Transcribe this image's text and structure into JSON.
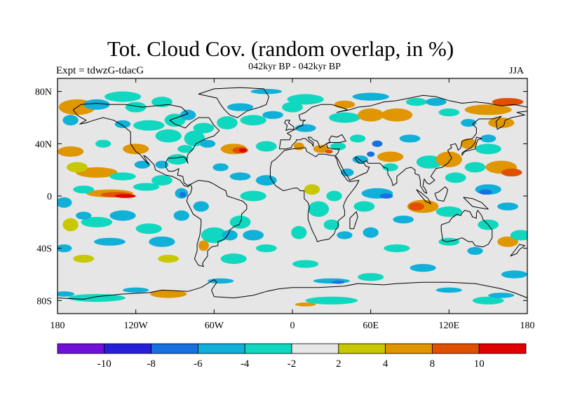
{
  "title": "Tot. Cloud Cov. (random overlap, in %)",
  "subtitle": "042kyr BP - 042kyr BP",
  "left_label": "Expt = tdwzG-tdacG",
  "right_label": "JJA",
  "map": {
    "lon_range": [
      -180,
      180
    ],
    "lat_range": [
      -90,
      90
    ],
    "lon_ticks": [
      {
        "value": -180,
        "label": "180"
      },
      {
        "value": -120,
        "label": "120W"
      },
      {
        "value": -60,
        "label": "60W"
      },
      {
        "value": 0,
        "label": "0"
      },
      {
        "value": 60,
        "label": "60E"
      },
      {
        "value": 120,
        "label": "120E"
      },
      {
        "value": 180,
        "label": "180"
      }
    ],
    "lat_ticks": [
      {
        "value": 80,
        "label": "80N"
      },
      {
        "value": 40,
        "label": "40N"
      },
      {
        "value": 0,
        "label": "0"
      },
      {
        "value": -40,
        "label": "40S"
      },
      {
        "value": -80,
        "label": "80S"
      }
    ],
    "background_color": "#e6e6e6"
  },
  "colorbar": {
    "colors": [
      "#7010d8",
      "#2820d8",
      "#1870e0",
      "#10b0d8",
      "#10d8c0",
      "#e6e6e6",
      "#c8c800",
      "#e09600",
      "#e05000",
      "#e00000"
    ],
    "labels": [
      "-10",
      "-8",
      "-6",
      "-4",
      "-2",
      "2",
      "4",
      "8",
      "10"
    ]
  },
  "blobs": [
    {
      "lon": -165,
      "lat": 68,
      "rx": 14,
      "ry": 6,
      "cls": 7
    },
    {
      "lon": -150,
      "lat": 70,
      "rx": 10,
      "ry": 4,
      "cls": 3
    },
    {
      "lon": -130,
      "lat": 76,
      "rx": 14,
      "ry": 4,
      "cls": 4
    },
    {
      "lon": -170,
      "lat": 34,
      "rx": 10,
      "ry": 4,
      "cls": 7
    },
    {
      "lon": -150,
      "lat": 18,
      "rx": 16,
      "ry": 4,
      "cls": 7
    },
    {
      "lon": -120,
      "lat": 36,
      "rx": 10,
      "ry": 4,
      "cls": 7
    },
    {
      "lon": -165,
      "lat": 22,
      "rx": 8,
      "ry": 4,
      "cls": 6
    },
    {
      "lon": -140,
      "lat": 2,
      "rx": 18,
      "ry": 3,
      "cls": 7
    },
    {
      "lon": -135,
      "lat": 1,
      "rx": 12,
      "ry": 2,
      "cls": 8
    },
    {
      "lon": -128,
      "lat": 0,
      "rx": 8,
      "ry": 1.5,
      "cls": 9
    },
    {
      "lon": -112,
      "lat": 7,
      "rx": 10,
      "ry": 3,
      "cls": 4
    },
    {
      "lon": -100,
      "lat": 12,
      "rx": 8,
      "ry": 4,
      "cls": 4
    },
    {
      "lon": -85,
      "lat": 2,
      "rx": 5,
      "ry": 4,
      "cls": 3
    },
    {
      "lon": -84,
      "lat": 1,
      "rx": 2.5,
      "ry": 2,
      "cls": 2
    },
    {
      "lon": -150,
      "lat": -20,
      "rx": 12,
      "ry": 4,
      "cls": 4
    },
    {
      "lon": -170,
      "lat": -22,
      "rx": 6,
      "ry": 5,
      "cls": 6
    },
    {
      "lon": -110,
      "lat": -25,
      "rx": 10,
      "ry": 4,
      "cls": 4
    },
    {
      "lon": -95,
      "lat": -48,
      "rx": 8,
      "ry": 3,
      "cls": 6
    },
    {
      "lon": -160,
      "lat": -48,
      "rx": 8,
      "ry": 3,
      "cls": 6
    },
    {
      "lon": -150,
      "lat": -78,
      "rx": 22,
      "ry": 3,
      "cls": 4
    },
    {
      "lon": -95,
      "lat": -75,
      "rx": 14,
      "ry": 3,
      "cls": 7
    },
    {
      "lon": -110,
      "lat": 54,
      "rx": 12,
      "ry": 4,
      "cls": 4
    },
    {
      "lon": -95,
      "lat": 46,
      "rx": 10,
      "ry": 5,
      "cls": 4
    },
    {
      "lon": -75,
      "lat": 44,
      "rx": 8,
      "ry": 6,
      "cls": 4
    },
    {
      "lon": -68,
      "lat": 52,
      "rx": 8,
      "ry": 4,
      "cls": 4
    },
    {
      "lon": -90,
      "lat": 58,
      "rx": 8,
      "ry": 5,
      "cls": 4
    },
    {
      "lon": -82,
      "lat": 36,
      "rx": 6,
      "ry": 3,
      "cls": 4
    },
    {
      "lon": -88,
      "lat": 28,
      "rx": 8,
      "ry": 4,
      "cls": 4
    },
    {
      "lon": -50,
      "lat": 56,
      "rx": 8,
      "ry": 5,
      "cls": 4
    },
    {
      "lon": -45,
      "lat": 36,
      "rx": 10,
      "ry": 4,
      "cls": 7
    },
    {
      "lon": -40,
      "lat": 35,
      "rx": 6,
      "ry": 2.5,
      "cls": 8
    },
    {
      "lon": -38,
      "lat": 35,
      "rx": 3,
      "ry": 1.5,
      "cls": 9
    },
    {
      "lon": -30,
      "lat": 58,
      "rx": 10,
      "ry": 4,
      "cls": 4
    },
    {
      "lon": -20,
      "lat": 38,
      "rx": 8,
      "ry": 4,
      "cls": 4
    },
    {
      "lon": -30,
      "lat": 0,
      "rx": 10,
      "ry": 4,
      "cls": 4
    },
    {
      "lon": -40,
      "lat": -20,
      "rx": 8,
      "ry": 5,
      "cls": 4
    },
    {
      "lon": -60,
      "lat": -30,
      "rx": 10,
      "ry": 6,
      "cls": 4
    },
    {
      "lon": -68,
      "lat": -38,
      "rx": 4,
      "ry": 4,
      "cls": 7
    },
    {
      "lon": -45,
      "lat": -48,
      "rx": 10,
      "ry": 4,
      "cls": 4
    },
    {
      "lon": -20,
      "lat": -40,
      "rx": 8,
      "ry": 3,
      "cls": 4
    },
    {
      "lon": 10,
      "lat": -52,
      "rx": 10,
      "ry": 3,
      "cls": 4
    },
    {
      "lon": 5,
      "lat": -28,
      "rx": 6,
      "ry": 5,
      "cls": 4
    },
    {
      "lon": 10,
      "lat": 74,
      "rx": 14,
      "ry": 4,
      "cls": 4
    },
    {
      "lon": 0,
      "lat": 68,
      "rx": 8,
      "ry": 4,
      "cls": 4
    },
    {
      "lon": 40,
      "lat": 60,
      "rx": 12,
      "ry": 4,
      "cls": 4
    },
    {
      "lon": 40,
      "lat": 70,
      "rx": 8,
      "ry": 3,
      "cls": 7
    },
    {
      "lon": 60,
      "lat": 62,
      "rx": 10,
      "ry": 5,
      "cls": 7
    },
    {
      "lon": 80,
      "lat": 62,
      "rx": 12,
      "ry": 5,
      "cls": 7
    },
    {
      "lon": 95,
      "lat": 72,
      "rx": 8,
      "ry": 3,
      "cls": 4
    },
    {
      "lon": 120,
      "lat": 64,
      "rx": 8,
      "ry": 3,
      "cls": 4
    },
    {
      "lon": 150,
      "lat": 66,
      "rx": 18,
      "ry": 4,
      "cls": 7
    },
    {
      "lon": 165,
      "lat": 72,
      "rx": 12,
      "ry": 3,
      "cls": 8
    },
    {
      "lon": 160,
      "lat": 56,
      "rx": 10,
      "ry": 4,
      "cls": 7
    },
    {
      "lon": 5,
      "lat": 38,
      "rx": 4,
      "ry": 3,
      "cls": 7
    },
    {
      "lon": 22,
      "lat": 36,
      "rx": 6,
      "ry": 3,
      "cls": 7
    },
    {
      "lon": 28,
      "lat": 34,
      "rx": 3,
      "ry": 1.5,
      "cls": 8
    },
    {
      "lon": 35,
      "lat": 38,
      "rx": 6,
      "ry": 3,
      "cls": 4
    },
    {
      "lon": 50,
      "lat": 44,
      "rx": 6,
      "ry": 3,
      "cls": 4
    },
    {
      "lon": 75,
      "lat": 30,
      "rx": 10,
      "ry": 4,
      "cls": 7
    },
    {
      "lon": 75,
      "lat": 22,
      "rx": 6,
      "ry": 3,
      "cls": 4
    },
    {
      "lon": 105,
      "lat": 26,
      "rx": 10,
      "ry": 5,
      "cls": 4
    },
    {
      "lon": 120,
      "lat": 28,
      "rx": 10,
      "ry": 6,
      "cls": 7
    },
    {
      "lon": 125,
      "lat": 14,
      "rx": 8,
      "ry": 4,
      "cls": 4
    },
    {
      "lon": 135,
      "lat": 40,
      "rx": 6,
      "ry": 4,
      "cls": 7
    },
    {
      "lon": 140,
      "lat": 22,
      "rx": 8,
      "ry": 4,
      "cls": 4
    },
    {
      "lon": 160,
      "lat": 22,
      "rx": 12,
      "ry": 5,
      "cls": 7
    },
    {
      "lon": 168,
      "lat": 18,
      "rx": 8,
      "ry": 3,
      "cls": 8
    },
    {
      "lon": 150,
      "lat": 36,
      "rx": 10,
      "ry": 4,
      "cls": 4
    },
    {
      "lon": 32,
      "lat": 0,
      "rx": 6,
      "ry": 4,
      "cls": 4
    },
    {
      "lon": 15,
      "lat": 5,
      "rx": 6,
      "ry": 4,
      "cls": 6
    },
    {
      "lon": 20,
      "lat": -10,
      "rx": 8,
      "ry": 6,
      "cls": 4
    },
    {
      "lon": 30,
      "lat": -22,
      "rx": 6,
      "ry": 4,
      "cls": 4
    },
    {
      "lon": 55,
      "lat": -8,
      "rx": 8,
      "ry": 4,
      "cls": 4
    },
    {
      "lon": 100,
      "lat": -8,
      "rx": 12,
      "ry": 5,
      "cls": 7
    },
    {
      "lon": 95,
      "lat": -8,
      "rx": 6,
      "ry": 3,
      "cls": 8
    },
    {
      "lon": 120,
      "lat": -12,
      "rx": 10,
      "ry": 4,
      "cls": 4
    },
    {
      "lon": 150,
      "lat": -22,
      "rx": 8,
      "ry": 4,
      "cls": 4
    },
    {
      "lon": 165,
      "lat": -35,
      "rx": 8,
      "ry": 4,
      "cls": 7
    },
    {
      "lon": 175,
      "lat": -30,
      "rx": 8,
      "ry": 4,
      "cls": 4
    },
    {
      "lon": 80,
      "lat": -40,
      "rx": 10,
      "ry": 3,
      "cls": 4
    },
    {
      "lon": 120,
      "lat": -35,
      "rx": 8,
      "ry": 3,
      "cls": 4
    },
    {
      "lon": 60,
      "lat": -62,
      "rx": 10,
      "ry": 3,
      "cls": 4
    },
    {
      "lon": 30,
      "lat": -80,
      "rx": 20,
      "ry": 3,
      "cls": 4
    },
    {
      "lon": 10,
      "lat": -83,
      "rx": 8,
      "ry": 1.5,
      "cls": 7
    },
    {
      "lon": 150,
      "lat": -80,
      "rx": 12,
      "ry": 3,
      "cls": 4
    },
    {
      "lon": -170,
      "lat": 58,
      "rx": 6,
      "ry": 4,
      "cls": 3
    },
    {
      "lon": -120,
      "lat": 68,
      "rx": 8,
      "ry": 4,
      "cls": 4
    },
    {
      "lon": -100,
      "lat": 72,
      "rx": 8,
      "ry": 4,
      "cls": 4
    },
    {
      "lon": -145,
      "lat": 40,
      "rx": 6,
      "ry": 3,
      "cls": 4
    },
    {
      "lon": -130,
      "lat": 15,
      "rx": 10,
      "ry": 3,
      "cls": 4
    },
    {
      "lon": -160,
      "lat": 5,
      "rx": 8,
      "ry": 3,
      "cls": 4
    },
    {
      "lon": -115,
      "lat": 24,
      "rx": 6,
      "ry": 3,
      "cls": 3
    },
    {
      "lon": -175,
      "lat": -5,
      "rx": 6,
      "ry": 4,
      "cls": 3
    },
    {
      "lon": -130,
      "lat": -15,
      "rx": 10,
      "ry": 4,
      "cls": 3
    },
    {
      "lon": -160,
      "lat": -15,
      "rx": 6,
      "ry": 3,
      "cls": 3
    },
    {
      "lon": -140,
      "lat": -35,
      "rx": 12,
      "ry": 3,
      "cls": 3
    },
    {
      "lon": -175,
      "lat": -40,
      "rx": 6,
      "ry": 3,
      "cls": 3
    },
    {
      "lon": -100,
      "lat": -35,
      "rx": 10,
      "ry": 4,
      "cls": 3
    },
    {
      "lon": -85,
      "lat": -15,
      "rx": 6,
      "ry": 4,
      "cls": 3
    },
    {
      "lon": -70,
      "lat": -8,
      "rx": 6,
      "ry": 4,
      "cls": 3
    },
    {
      "lon": -48,
      "lat": -30,
      "rx": 6,
      "ry": 4,
      "cls": 3
    },
    {
      "lon": -30,
      "lat": -30,
      "rx": 8,
      "ry": 4,
      "cls": 3
    },
    {
      "lon": -20,
      "lat": 12,
      "rx": 8,
      "ry": 4,
      "cls": 3
    },
    {
      "lon": -40,
      "lat": 15,
      "rx": 8,
      "ry": 3,
      "cls": 3
    },
    {
      "lon": -55,
      "lat": 22,
      "rx": 6,
      "ry": 3,
      "cls": 3
    },
    {
      "lon": -65,
      "lat": 40,
      "rx": 6,
      "ry": 3,
      "cls": 3
    },
    {
      "lon": -100,
      "lat": 24,
      "rx": 5,
      "ry": 3,
      "cls": 3
    },
    {
      "lon": -130,
      "lat": 55,
      "rx": 6,
      "ry": 3,
      "cls": 3
    },
    {
      "lon": -80,
      "lat": 62,
      "rx": 6,
      "ry": 4,
      "cls": 3
    },
    {
      "lon": -40,
      "lat": 68,
      "rx": 10,
      "ry": 3,
      "cls": 3
    },
    {
      "lon": -15,
      "lat": 62,
      "rx": 8,
      "ry": 3,
      "cls": 3
    },
    {
      "lon": -20,
      "lat": 80,
      "rx": 12,
      "ry": 2,
      "cls": 3
    },
    {
      "lon": 10,
      "lat": 52,
      "rx": 8,
      "ry": 3,
      "cls": 3
    },
    {
      "lon": 60,
      "lat": 76,
      "rx": 14,
      "ry": 3,
      "cls": 3
    },
    {
      "lon": 110,
      "lat": 72,
      "rx": 8,
      "ry": 3,
      "cls": 3
    },
    {
      "lon": 135,
      "lat": 56,
      "rx": 6,
      "ry": 3,
      "cls": 3
    },
    {
      "lon": 65,
      "lat": 40,
      "rx": 4,
      "ry": 2.5,
      "cls": 2
    },
    {
      "lon": 90,
      "lat": 44,
      "rx": 8,
      "ry": 3,
      "cls": 3
    },
    {
      "lon": 52,
      "lat": 28,
      "rx": 6,
      "ry": 3,
      "cls": 3
    },
    {
      "lon": 60,
      "lat": 32,
      "rx": 3,
      "ry": 2,
      "cls": 2
    },
    {
      "lon": 42,
      "lat": 18,
      "rx": 5,
      "ry": 3,
      "cls": 3
    },
    {
      "lon": 65,
      "lat": 2,
      "rx": 12,
      "ry": 4,
      "cls": 3
    },
    {
      "lon": 72,
      "lat": 0,
      "rx": 5,
      "ry": 2,
      "cls": 2
    },
    {
      "lon": 40,
      "lat": -30,
      "rx": 6,
      "ry": 3,
      "cls": 3
    },
    {
      "lon": 60,
      "lat": -28,
      "rx": 6,
      "ry": 4,
      "cls": 3
    },
    {
      "lon": 85,
      "lat": -18,
      "rx": 8,
      "ry": 3,
      "cls": 3
    },
    {
      "lon": 150,
      "lat": 5,
      "rx": 10,
      "ry": 4,
      "cls": 3
    },
    {
      "lon": 148,
      "lat": 3,
      "rx": 5,
      "ry": 2,
      "cls": 2
    },
    {
      "lon": 165,
      "lat": -8,
      "rx": 8,
      "ry": 3,
      "cls": 3
    },
    {
      "lon": 140,
      "lat": -42,
      "rx": 6,
      "ry": 3,
      "cls": 3
    },
    {
      "lon": 100,
      "lat": -55,
      "rx": 10,
      "ry": 3,
      "cls": 3
    },
    {
      "lon": 170,
      "lat": -60,
      "rx": 10,
      "ry": 3,
      "cls": 3
    },
    {
      "lon": 150,
      "lat": 44,
      "rx": 6,
      "ry": 3,
      "cls": 3
    },
    {
      "lon": -55,
      "lat": -65,
      "rx": 10,
      "ry": 2,
      "cls": 3
    },
    {
      "lon": 30,
      "lat": -65,
      "rx": 14,
      "ry": 2,
      "cls": 3
    },
    {
      "lon": 35,
      "lat": -66,
      "rx": 5,
      "ry": 1.2,
      "cls": 2
    },
    {
      "lon": 120,
      "lat": -72,
      "rx": 10,
      "ry": 2,
      "cls": 3
    },
    {
      "lon": 160,
      "lat": -76,
      "rx": 10,
      "ry": 2,
      "cls": 3
    },
    {
      "lon": -120,
      "lat": -72,
      "rx": 10,
      "ry": 2,
      "cls": 3
    },
    {
      "lon": -175,
      "lat": -75,
      "rx": 8,
      "ry": 2,
      "cls": 3
    }
  ]
}
